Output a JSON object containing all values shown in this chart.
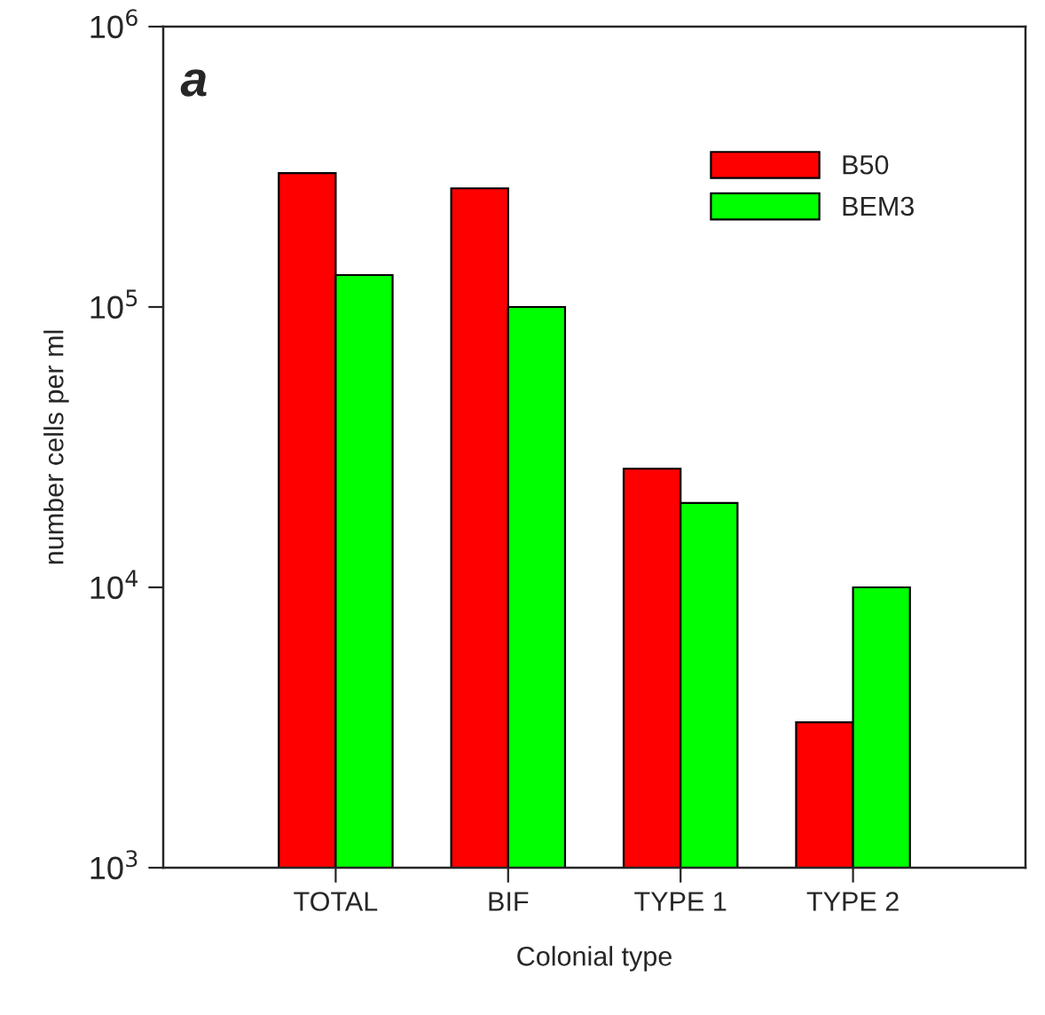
{
  "chart_data": {
    "type": "bar",
    "xlabel": "Colonial type",
    "ylabel": "number cells per ml",
    "annotations": [
      "a"
    ],
    "categories": [
      "TOTAL",
      "BIF",
      "TYPE 1",
      "TYPE 2"
    ],
    "series": [
      {
        "name": "B50",
        "color": "#ff0000",
        "values": [
          300000,
          265000,
          26500,
          3300
        ]
      },
      {
        "name": "BEM3",
        "color": "#00ff00",
        "values": [
          130000,
          100000,
          20000,
          10000
        ]
      }
    ],
    "log": true,
    "ylim": [
      1000,
      1000000
    ],
    "yticks": [
      {
        "value": 1000,
        "label": "10$^{3}$"
      },
      {
        "value": 10000,
        "label": "10$^{4}$"
      },
      {
        "value": 100000,
        "label": "10$^{5}$"
      },
      {
        "value": 1000000,
        "label": "10$^{6}$"
      }
    ],
    "grid": false,
    "legend": "top right"
  }
}
